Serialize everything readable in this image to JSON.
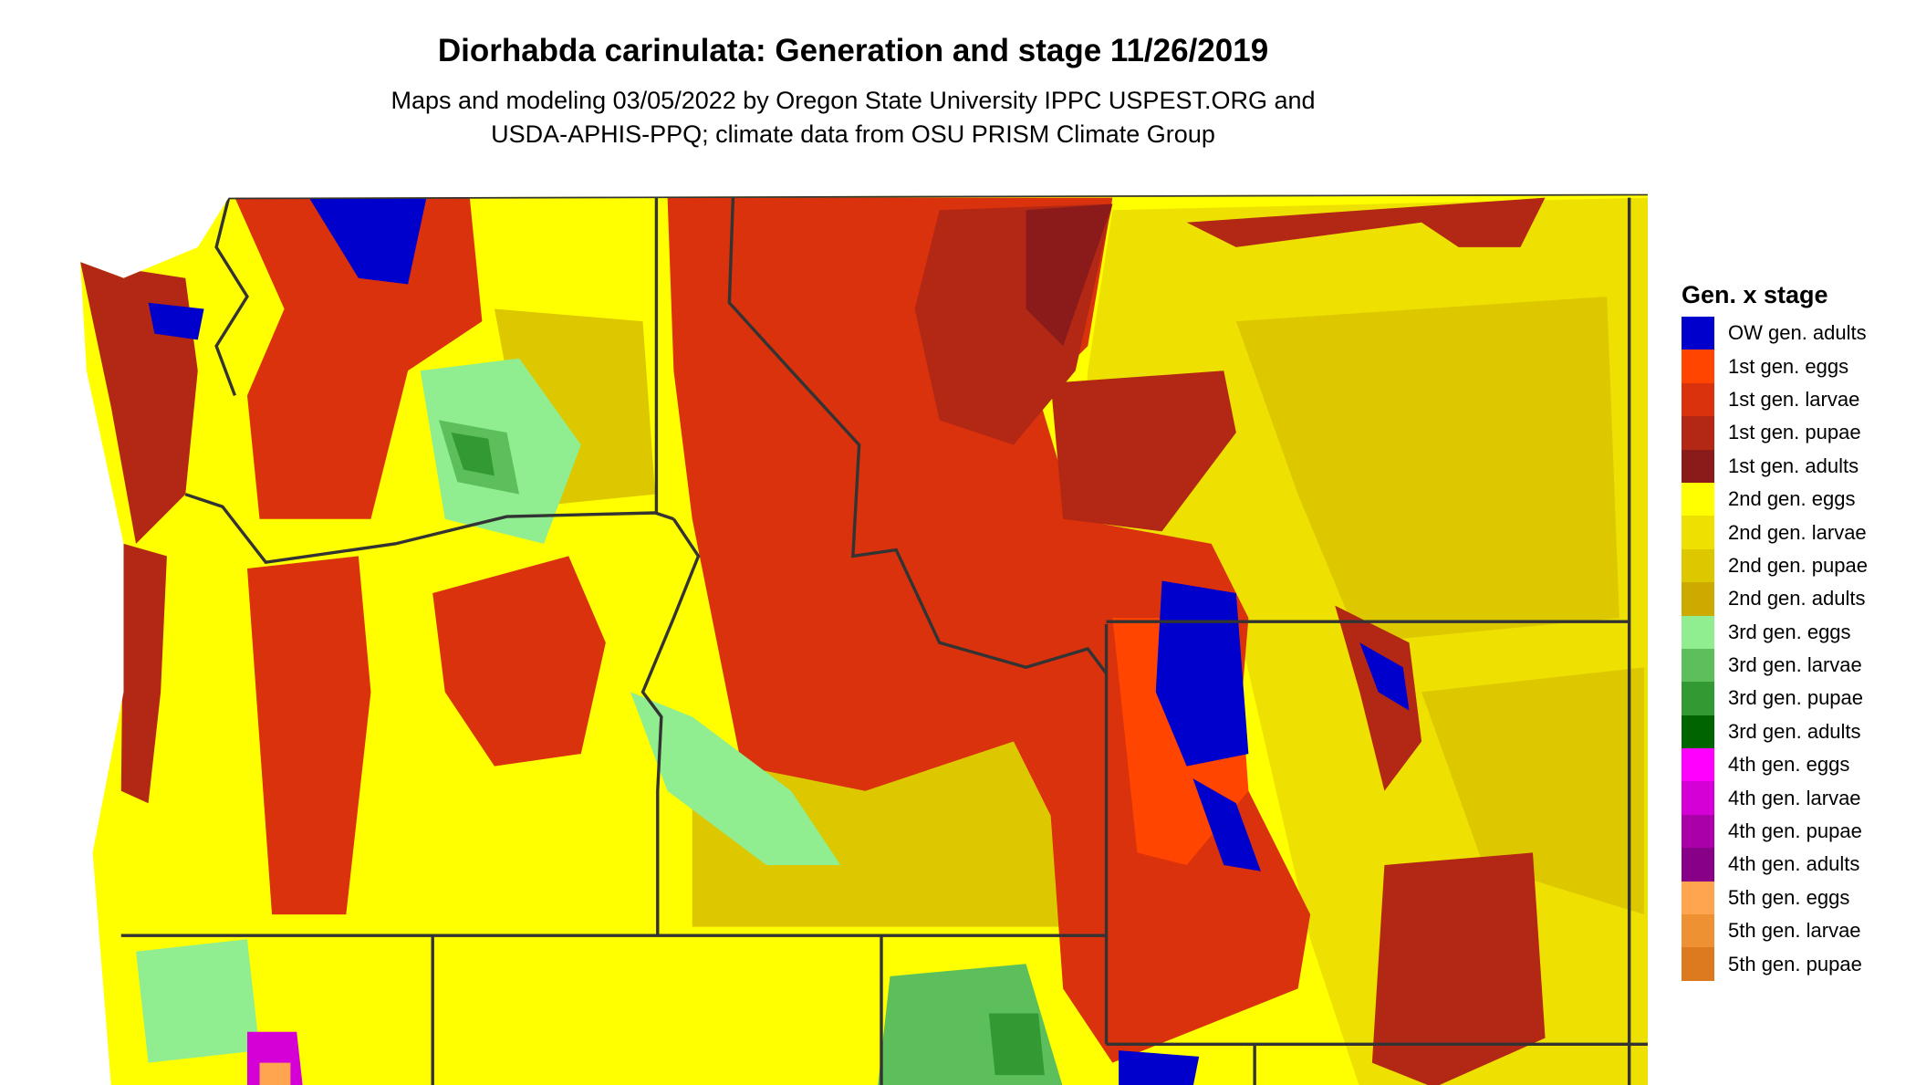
{
  "title": "Diorhabda carinulata: Generation and stage 11/26/2019",
  "subtitle_lines": [
    "Maps and modeling 03/05/2022 by Oregon State University IPPC USPEST.ORG and",
    "USDA-APHIS-PPQ; climate data from OSU PRISM Climate Group"
  ],
  "legend": {
    "title": "Gen. x stage",
    "items": [
      {
        "label": "OW gen. adults",
        "color": "#0000cc"
      },
      {
        "label": "1st gen. eggs",
        "color": "#ff4500"
      },
      {
        "label": "1st gen. larvae",
        "color": "#d9320c"
      },
      {
        "label": "1st gen. pupae",
        "color": "#b22815"
      },
      {
        "label": "1st gen. adults",
        "color": "#8b1a1a"
      },
      {
        "label": "2nd gen. eggs",
        "color": "#ffff00"
      },
      {
        "label": "2nd gen. larvae",
        "color": "#eee000"
      },
      {
        "label": "2nd gen. pupae",
        "color": "#ddc800"
      },
      {
        "label": "2nd gen. adults",
        "color": "#ccaa00"
      },
      {
        "label": "3rd gen. eggs",
        "color": "#90ee90"
      },
      {
        "label": "3rd gen. larvae",
        "color": "#5cbf5c"
      },
      {
        "label": "3rd gen. pupae",
        "color": "#339933"
      },
      {
        "label": "3rd gen. adults",
        "color": "#006400"
      },
      {
        "label": "4th gen. eggs",
        "color": "#ff00ff"
      },
      {
        "label": "4th gen. larvae",
        "color": "#d500d5"
      },
      {
        "label": "4th gen. pupae",
        "color": "#aa00aa"
      },
      {
        "label": "4th gen. adults",
        "color": "#880088"
      },
      {
        "label": "5th gen. eggs",
        "color": "#ffa54f"
      },
      {
        "label": "5th gen. larvae",
        "color": "#ee9133"
      },
      {
        "label": "5th gen. pupae",
        "color": "#dd7a1f"
      }
    ]
  }
}
